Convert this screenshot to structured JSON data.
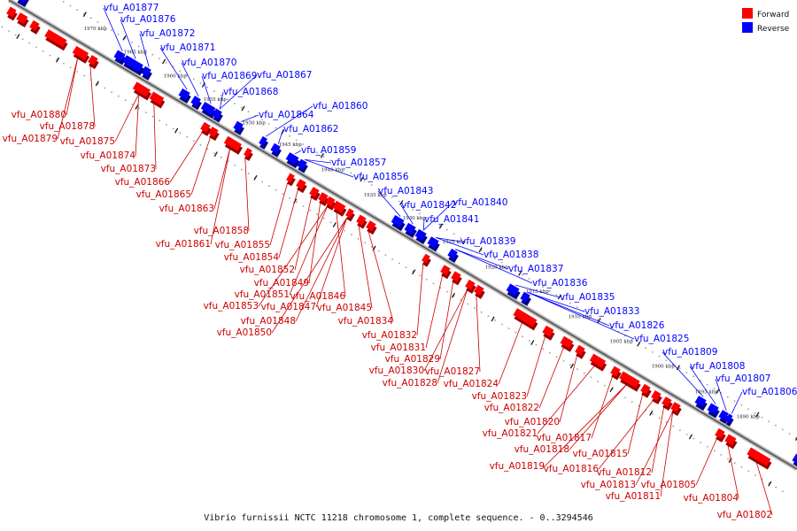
{
  "caption": "Vibrio furnissii NCTC 11218 chromosome 1, complete sequence. - 0..3294546",
  "legend": [
    {
      "name": "Forward",
      "color": "#ff0000"
    },
    {
      "name": "Reverse",
      "color": "#0000ff"
    }
  ],
  "colors": {
    "forward": "#ff0000",
    "reverse": "#0000ff",
    "backbone": "#888888"
  },
  "ticks": [
    "1970 kbp",
    "1965 kbp",
    "1960 kbp",
    "1955 kbp",
    "1950 kbp",
    "1945 kbp",
    "1940 kbp",
    "1935 kbp",
    "1930 kbp",
    "1925 kbp",
    "1920 kbp",
    "1915 kbp",
    "1910 kbp",
    "1905 kbp",
    "1900 kbp",
    "1895 kbp",
    "1890 kbp"
  ],
  "reverse_labels": [
    "vfu_A01877",
    "vfu_A01876",
    "vfu_A01872",
    "vfu_A01871",
    "vfu_A01870",
    "vfu_A01869",
    "vfu_A01867",
    "vfu_A01868",
    "vfu_A01864",
    "vfu_A01860",
    "vfu_A01862",
    "vfu_A01859",
    "vfu_A01857",
    "vfu_A01856",
    "vfu_A01843",
    "vfu_A01842",
    "vfu_A01840",
    "vfu_A01841",
    "vfu_A01839",
    "vfu_A01838",
    "vfu_A01837",
    "vfu_A01836",
    "vfu_A01835",
    "vfu_A01833",
    "vfu_A01826",
    "vfu_A01825",
    "vfu_A01809",
    "vfu_A01808",
    "vfu_A01807",
    "vfu_A01806"
  ],
  "forward_labels": [
    "vfu_A01880",
    "vfu_A01878",
    "vfu_A01879",
    "vfu_A01875",
    "vfu_A01874",
    "vfu_A01873",
    "vfu_A01866",
    "vfu_A01865",
    "vfu_A01863",
    "vfu_A01858",
    "vfu_A01861",
    "vfu_A01855",
    "vfu_A01854",
    "vfu_A01852",
    "vfu_A01849",
    "vfu_A01851",
    "vfu_A01846",
    "vfu_A01853",
    "vfu_A01847",
    "vfu_A01845",
    "vfu_A01848",
    "vfu_A01834",
    "vfu_A01850",
    "vfu_A01832",
    "vfu_A01831",
    "vfu_A01829",
    "vfu_A01830",
    "vfu_A01827",
    "vfu_A01828",
    "vfu_A01824",
    "vfu_A01823",
    "vfu_A01822",
    "vfu_A01820",
    "vfu_A01821",
    "vfu_A01817",
    "vfu_A01818",
    "vfu_A01815",
    "vfu_A01819",
    "vfu_A01816",
    "vfu_A01812",
    "vfu_A01813",
    "vfu_A01805",
    "vfu_A01811",
    "vfu_A01804",
    "vfu_A01802"
  ]
}
